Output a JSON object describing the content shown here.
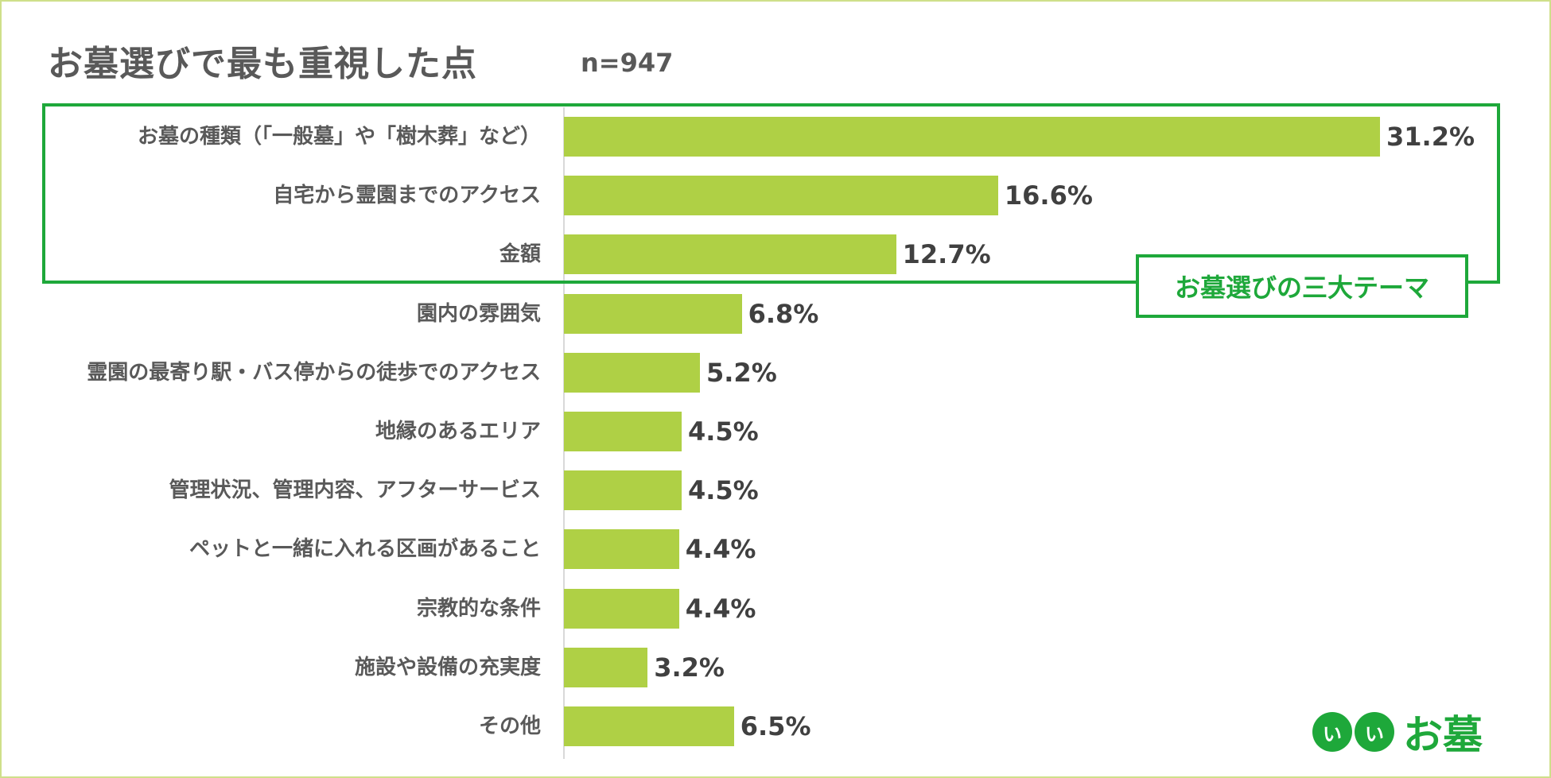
{
  "title": "お墓選びで最も重視した点",
  "sample_size": "n=947",
  "highlight_label": "お墓選びの三大テーマ",
  "logo": {
    "circle1": "い",
    "circle2": "い",
    "text": "お墓"
  },
  "colors": {
    "bar": "#afd045",
    "highlight": "#1ea83a",
    "frame": "#cfe08a"
  },
  "chart_data": {
    "type": "bar",
    "orientation": "horizontal",
    "title": "お墓選びで最も重視した点",
    "categories": [
      "お墓の種類（「一般墓」や「樹木葬」など）",
      "自宅から霊園までのアクセス",
      "金額",
      "園内の雰囲気",
      "霊園の最寄り駅・バス停からの徒歩でのアクセス",
      "地縁のあるエリア",
      "管理状況、管理内容、アフターサービス",
      "ペットと一緒に入れる区画があること",
      "宗教的な条件",
      "施設や設備の充実度",
      "その他"
    ],
    "values": [
      31.2,
      16.6,
      12.7,
      6.8,
      5.2,
      4.5,
      4.5,
      4.4,
      4.4,
      3.2,
      6.5
    ],
    "value_labels": [
      "31.2%",
      "16.6%",
      "12.7%",
      "6.8%",
      "5.2%",
      "4.5%",
      "4.5%",
      "4.4%",
      "4.4%",
      "3.2%",
      "6.5%"
    ],
    "unit": "%",
    "highlighted_categories": 3
  }
}
